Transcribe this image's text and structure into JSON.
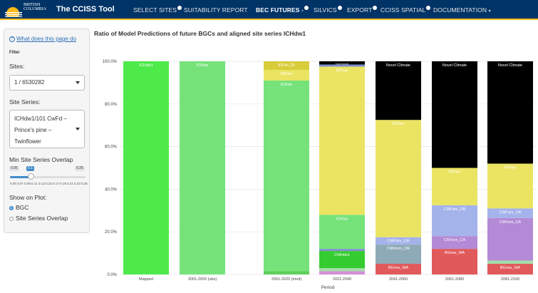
{
  "header": {
    "logo_line1": "BRITISH",
    "logo_line2": "COLUMBIA",
    "app_title": "The CCISS Tool",
    "nav": [
      {
        "label": "SELECT SITES",
        "dot": true,
        "active": false
      },
      {
        "label": "SUITABILITY REPORT",
        "dot": false,
        "active": false
      },
      {
        "label": "BEC FUTURES -",
        "dot": true,
        "active": true
      },
      {
        "label": "SILVICS",
        "dot": true,
        "active": false
      },
      {
        "label": "EXPORT",
        "dot": true,
        "active": false
      },
      {
        "label": "CCISS SPATIAL",
        "dot": true,
        "active": false
      },
      {
        "label": "DOCUMENTATION",
        "dot": false,
        "active": false,
        "caret": true
      }
    ]
  },
  "sidebar": {
    "help_link": "What does this page do",
    "filter_label": "Filter",
    "sites_label": "Sites:",
    "sites_value": "1 / 6530282",
    "site_series_label": "Site Series:",
    "site_series_lines": [
      "ICHdw1/101 CwFd –",
      "Prince's pine –",
      "Twinflower"
    ],
    "overlap_label": "Min Site Series Overlap",
    "slider": {
      "min_label": "0.05",
      "value_label": "0.1",
      "max_label": "0.25",
      "value": 0.1,
      "min": 0.05,
      "max": 0.25,
      "ticks": [
        "0.05",
        "0.07",
        "0.09",
        "0.11",
        "0.13",
        "0.15",
        "0.17",
        "0.19",
        "0.21",
        "0.23",
        "0.25"
      ]
    },
    "show_on_plot_label": "Show on Plot:",
    "options": [
      {
        "label": "BGC",
        "selected": true
      },
      {
        "label": "Site Series Overlap",
        "selected": false
      }
    ]
  },
  "chart_data": {
    "type": "bar",
    "stacked": true,
    "title": "Ratio of Model Predictions of future BGCs and aligned site series ICHdw1",
    "xlabel": "Period",
    "ylabel": "",
    "ylim": [
      0,
      100
    ],
    "yticks": [
      "0.0%",
      "20.0%",
      "40.0%",
      "60.0%",
      "80.0%",
      "100.0%"
    ],
    "categories": [
      "Mapped",
      "2001-2020 (obs)",
      "2001-2020 (mod)",
      "2021-2040",
      "2041-2060",
      "2061-2080",
      "2081-2100"
    ],
    "colors": {
      "ICHdw1": "#4eea4a",
      "ICHxw": "#76e37a",
      "IDFdk": "#5fcf5a",
      "IDFxh_ID": "#d8cc3a",
      "IDFww": "#ebe462",
      "CWHds1": "#34cc2e",
      "CWHxm": "#a6dda8",
      "CMXmm_OR": "#8eaab7",
      "CWFdm_OR": "#a4b3ea",
      "CMXxm_CA": "#b48ad6",
      "BGmw_WA": "#e0595b",
      "Other1": "#7d8fd0",
      "Other2": "#d48fd9",
      "Novel Climate": "#000000"
    },
    "bars": [
      {
        "period": "Mapped",
        "segments": [
          {
            "name": "ICHdw1",
            "value": 100,
            "label": "ICHdw1"
          }
        ]
      },
      {
        "period": "2001-2020 (obs)",
        "segments": [
          {
            "name": "ICHxw",
            "value": 100,
            "label": "ICHxw"
          }
        ]
      },
      {
        "period": "2001-2020 (mod)",
        "segments": [
          {
            "name": "IDFdk",
            "value": 1.5,
            "label": ""
          },
          {
            "name": "ICHxw",
            "value": 89.5,
            "label": "ICHxw"
          },
          {
            "name": "IDFww",
            "value": 5,
            "label": "IDFww"
          },
          {
            "name": "IDFxh_ID",
            "value": 4,
            "label": "IDFxh_ID"
          }
        ]
      },
      {
        "period": "2021-2040",
        "segments": [
          {
            "name": "Other2",
            "value": 1.5,
            "label": ""
          },
          {
            "name": "CWHxm",
            "value": 1.5,
            "label": ""
          },
          {
            "name": "CWHds1",
            "value": 8,
            "label": "CWHds1"
          },
          {
            "name": "Other1",
            "value": 1,
            "label": ""
          },
          {
            "name": "ICHxw",
            "value": 16,
            "label": "ICHxw"
          },
          {
            "name": "IDFww",
            "value": 69.5,
            "label": "IDFww"
          },
          {
            "name": "Other1",
            "value": 1,
            "label": ""
          },
          {
            "name": "Novel Climate",
            "value": 1.5,
            "label": "Novel Climate"
          }
        ]
      },
      {
        "period": "2041-2060",
        "segments": [
          {
            "name": "BGmw_WA",
            "value": 5,
            "label": "BGmw_WA"
          },
          {
            "name": "CMXmm_OR",
            "value": 9,
            "label": "CMXmm_OR"
          },
          {
            "name": "CWFdm_OR",
            "value": 3.5,
            "label": "CWFdm_OR"
          },
          {
            "name": "IDFww",
            "value": 55,
            "label": "IDFww"
          },
          {
            "name": "Novel Climate",
            "value": 27.5,
            "label": "Novel Climate"
          }
        ]
      },
      {
        "period": "2061-2080",
        "segments": [
          {
            "name": "BGmw_WA",
            "value": 12,
            "label": "BGmw_WA"
          },
          {
            "name": "CMXxm_CA",
            "value": 6,
            "label": "CMXxm_CA"
          },
          {
            "name": "CWFdm_OR",
            "value": 14.5,
            "label": "CWFdm_OR"
          },
          {
            "name": "IDFww",
            "value": 17.5,
            "label": "IDFww"
          },
          {
            "name": "Novel Climate",
            "value": 50,
            "label": "Novel Climate"
          }
        ]
      },
      {
        "period": "2081-2100",
        "segments": [
          {
            "name": "BGmw_WA",
            "value": 5,
            "label": "BGmw_WA"
          },
          {
            "name": "CWHxm",
            "value": 1.5,
            "label": ""
          },
          {
            "name": "CMXxm_CA",
            "value": 20,
            "label": "CMXxm_CA"
          },
          {
            "name": "CWFdm_OR",
            "value": 4.5,
            "label": "CWFdm_OR"
          },
          {
            "name": "IDFww",
            "value": 21,
            "label": "IDFww"
          },
          {
            "name": "Novel Climate",
            "value": 48,
            "label": "Novel Climate"
          }
        ]
      }
    ]
  }
}
